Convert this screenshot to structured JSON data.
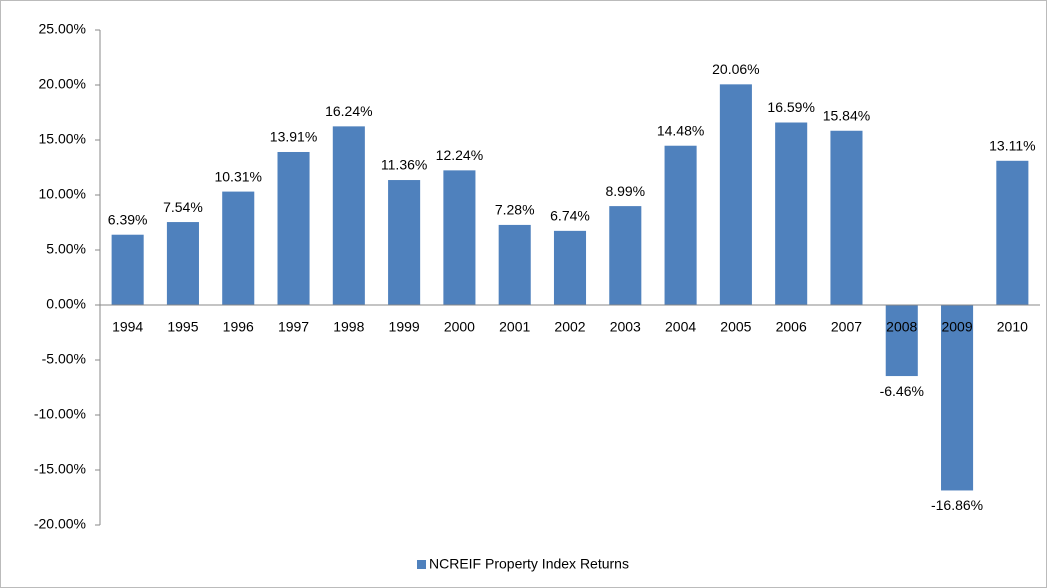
{
  "chart_data": {
    "type": "bar",
    "categories": [
      "1994",
      "1995",
      "1996",
      "1997",
      "1998",
      "1999",
      "2000",
      "2001",
      "2002",
      "2003",
      "2004",
      "2005",
      "2006",
      "2007",
      "2008",
      "2009",
      "2010"
    ],
    "series": [
      {
        "name": "NCREIF Property Index Returns",
        "color": "#4f81bd",
        "values": [
          6.39,
          7.54,
          10.31,
          13.91,
          16.24,
          11.36,
          12.24,
          7.28,
          6.74,
          8.99,
          14.48,
          20.06,
          16.59,
          15.84,
          -6.46,
          -16.86,
          13.11
        ],
        "value_labels": [
          "6.39%",
          "7.54%",
          "10.31%",
          "13.91%",
          "16.24%",
          "11.36%",
          "12.24%",
          "7.28%",
          "6.74%",
          "8.99%",
          "14.48%",
          "20.06%",
          "16.59%",
          "15.84%",
          "-6.46%",
          "-16.86%",
          "13.11%"
        ]
      }
    ],
    "ylim": [
      -20,
      25
    ],
    "yticks": [
      {
        "value": -20,
        "label": "-20.00%"
      },
      {
        "value": -15,
        "label": "-15.00%"
      },
      {
        "value": -10,
        "label": "-10.00%"
      },
      {
        "value": -5,
        "label": "-5.00%"
      },
      {
        "value": 0,
        "label": "0.00%"
      },
      {
        "value": 5,
        "label": "5.00%"
      },
      {
        "value": 10,
        "label": "10.00%"
      },
      {
        "value": 15,
        "label": "15.00%"
      },
      {
        "value": 20,
        "label": "20.00%"
      },
      {
        "value": 25,
        "label": "25.00%"
      }
    ],
    "grid": false,
    "legend": "bottom"
  }
}
